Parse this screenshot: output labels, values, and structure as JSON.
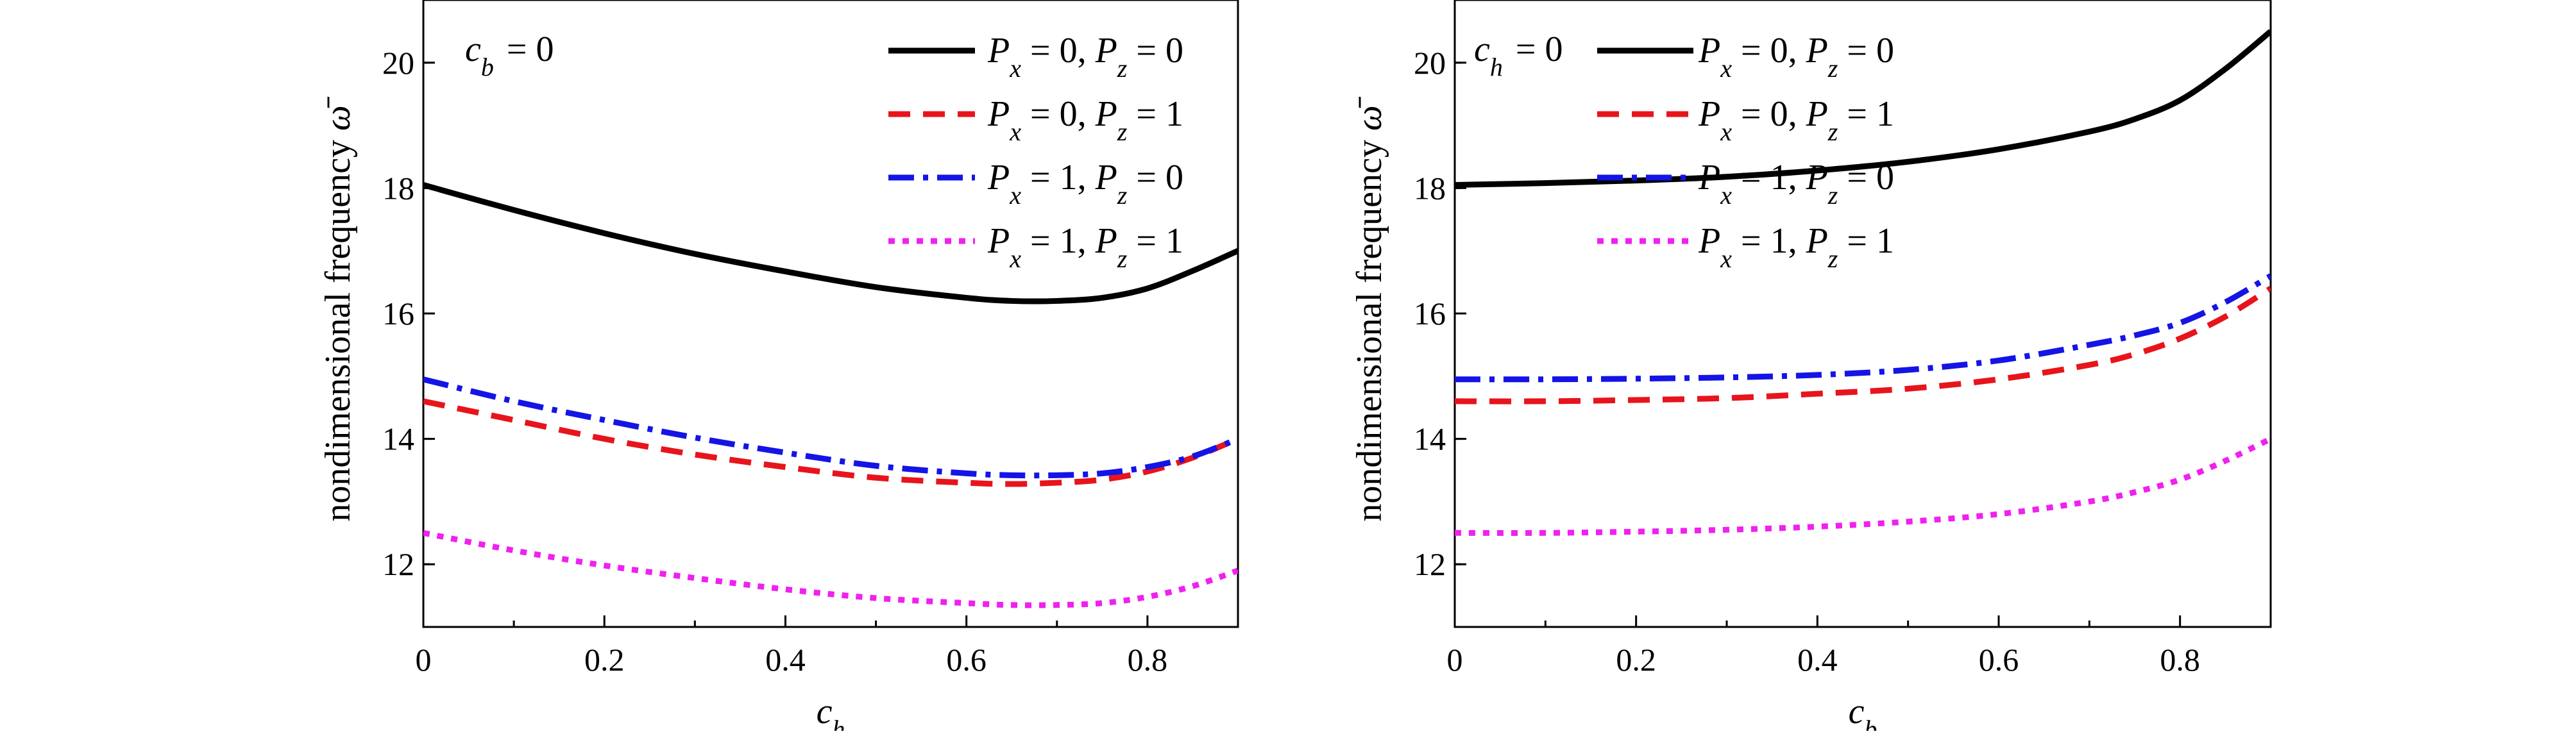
{
  "chart_data": [
    {
      "type": "line",
      "xlabel": "c_h",
      "xlabel_main": "c",
      "xlabel_sub": "h",
      "ylabel": "nondimensional frequency ω̄",
      "ylabel_text": "nondimensional frequency",
      "ylabel_symbol": "ω̄",
      "annotation": {
        "main": "c",
        "sub": "b",
        "rest": " = 0",
        "full": "c_b = 0"
      },
      "xlim": [
        0,
        0.9
      ],
      "ylim": [
        11,
        21
      ],
      "xticks": [
        0,
        0.2,
        0.4,
        0.6,
        0.8
      ],
      "xtick_labels": [
        "0",
        "0.2",
        "0.4",
        "0.6",
        "0.8"
      ],
      "yticks": [
        12,
        14,
        16,
        18,
        20
      ],
      "ytick_labels": [
        "12",
        "14",
        "16",
        "18",
        "20"
      ],
      "legend_position": "top-right",
      "x": [
        0,
        0.1,
        0.2,
        0.3,
        0.4,
        0.5,
        0.6,
        0.65,
        0.7,
        0.75,
        0.8,
        0.85,
        0.9
      ],
      "series": [
        {
          "name": "P_x = 0, P_z = 0",
          "label_parts": [
            "P",
            "x",
            " = 0, ",
            "P",
            "z",
            " = 0"
          ],
          "color": "#000000",
          "dash": "solid",
          "values": [
            18.05,
            17.65,
            17.28,
            16.95,
            16.67,
            16.42,
            16.25,
            16.2,
            16.2,
            16.25,
            16.4,
            16.68,
            17.0
          ]
        },
        {
          "name": "P_x = 0, P_z = 1",
          "label_parts": [
            "P",
            "x",
            " = 0, ",
            "P",
            "z",
            " = 1"
          ],
          "color": "#e8141c",
          "dash": "dash",
          "values": [
            14.6,
            14.3,
            14.0,
            13.75,
            13.55,
            13.38,
            13.3,
            13.28,
            13.3,
            13.35,
            13.48,
            13.7,
            14.0
          ]
        },
        {
          "name": "P_x = 1, P_z = 0",
          "label_parts": [
            "P",
            "x",
            " = 1, ",
            "P",
            "z",
            " = 0"
          ],
          "color": "#1414e6",
          "dash": "dashdot",
          "values": [
            14.95,
            14.6,
            14.3,
            14.02,
            13.78,
            13.57,
            13.45,
            13.42,
            13.42,
            13.45,
            13.55,
            13.72,
            14.0
          ]
        },
        {
          "name": "P_x = 1, P_z = 1",
          "label_parts": [
            "P",
            "x",
            " = 1, ",
            "P",
            "z",
            " = 1"
          ],
          "color": "#f020f0",
          "dash": "dot",
          "values": [
            12.5,
            12.22,
            11.98,
            11.78,
            11.6,
            11.46,
            11.38,
            11.35,
            11.35,
            11.38,
            11.48,
            11.65,
            11.9
          ]
        }
      ]
    },
    {
      "type": "line",
      "xlabel": "c_b",
      "xlabel_main": "c",
      "xlabel_sub": "b",
      "ylabel": "nondimensional frequency ω̄",
      "ylabel_text": "nondimensional frequency",
      "ylabel_symbol": "ω̄",
      "annotation": {
        "main": "c",
        "sub": "h",
        "rest": " = 0",
        "full": "c_h = 0"
      },
      "xlim": [
        0,
        0.9
      ],
      "ylim": [
        11,
        21
      ],
      "xticks": [
        0,
        0.2,
        0.4,
        0.6,
        0.8
      ],
      "xtick_labels": [
        "0",
        "0.2",
        "0.4",
        "0.6",
        "0.8"
      ],
      "yticks": [
        12,
        14,
        16,
        18,
        20
      ],
      "ytick_labels": [
        "12",
        "14",
        "16",
        "18",
        "20"
      ],
      "legend_position": "top",
      "x": [
        0,
        0.1,
        0.2,
        0.3,
        0.4,
        0.5,
        0.6,
        0.7,
        0.75,
        0.8,
        0.85,
        0.9
      ],
      "series": [
        {
          "name": "P_x = 0, P_z = 0",
          "label_parts": [
            "P",
            "x",
            " = 0, ",
            "P",
            "z",
            " = 0"
          ],
          "color": "#000000",
          "dash": "solid",
          "values": [
            18.05,
            18.08,
            18.12,
            18.18,
            18.28,
            18.42,
            18.62,
            18.9,
            19.1,
            19.4,
            19.9,
            20.5
          ]
        },
        {
          "name": "P_x = 0, P_z = 1",
          "label_parts": [
            "P",
            "x",
            " = 0, ",
            "P",
            "z",
            " = 1"
          ],
          "color": "#e8141c",
          "dash": "dash",
          "values": [
            14.6,
            14.6,
            14.62,
            14.65,
            14.72,
            14.8,
            14.95,
            15.18,
            15.35,
            15.6,
            15.95,
            16.4
          ]
        },
        {
          "name": "P_x = 1, P_z = 0",
          "label_parts": [
            "P",
            "x",
            " = 1, ",
            "P",
            "z",
            " = 0"
          ],
          "color": "#1414e6",
          "dash": "dashdot",
          "values": [
            14.95,
            14.95,
            14.96,
            14.98,
            15.02,
            15.1,
            15.25,
            15.5,
            15.65,
            15.85,
            16.18,
            16.6
          ]
        },
        {
          "name": "P_x = 1, P_z = 1",
          "label_parts": [
            "P",
            "x",
            " = 1, ",
            "P",
            "z",
            " = 1"
          ],
          "color": "#f020f0",
          "dash": "dot",
          "values": [
            12.5,
            12.5,
            12.52,
            12.55,
            12.6,
            12.68,
            12.8,
            13.0,
            13.15,
            13.35,
            13.65,
            14.0
          ]
        }
      ]
    }
  ]
}
